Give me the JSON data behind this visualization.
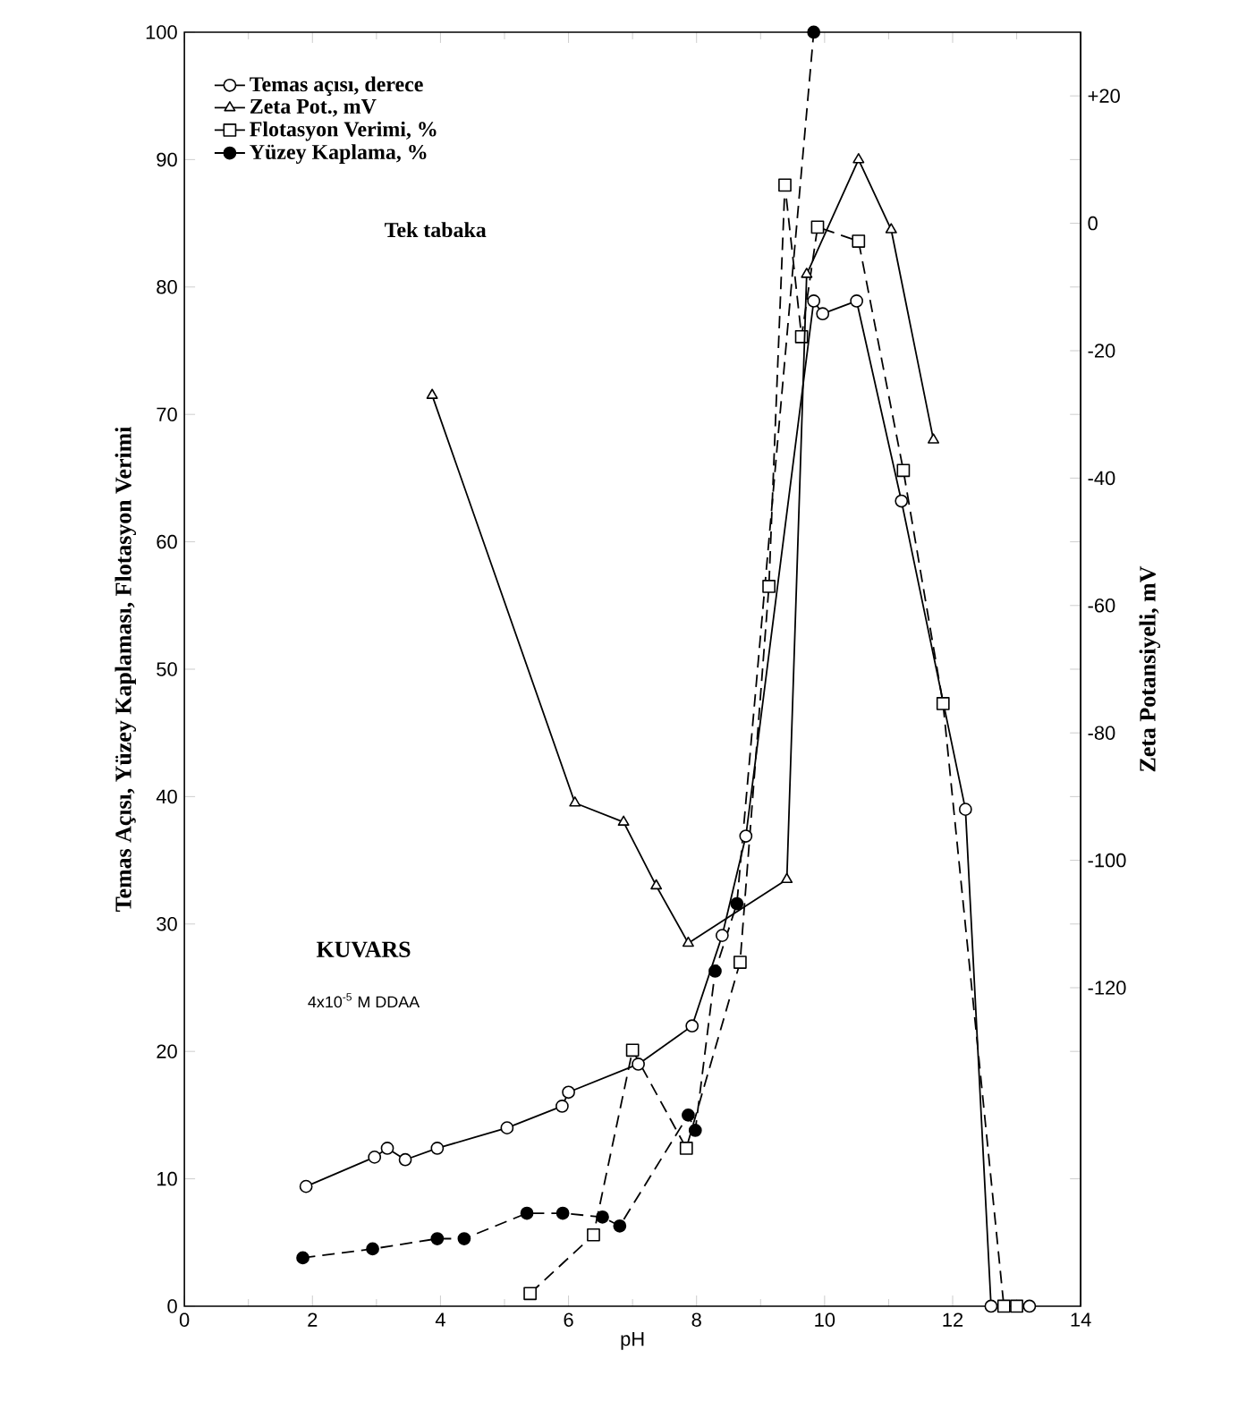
{
  "chart_data": {
    "type": "line",
    "xlabel": "pH",
    "ylabel": "Temas Açısı, Yüzey Kaplaması, Flotasyon Verimi",
    "y2label": "Zeta Potansiyeli, mV",
    "xlim": [
      0,
      14
    ],
    "xticks": [
      0,
      2,
      4,
      6,
      8,
      10,
      12,
      14
    ],
    "ylim": [
      0,
      100
    ],
    "yticks": [
      0,
      10,
      20,
      30,
      40,
      50,
      60,
      70,
      80,
      90,
      100
    ],
    "y2lim": [
      -170,
      30
    ],
    "y2ticks": [
      {
        "value": 20,
        "label": "+20"
      },
      {
        "value": 10,
        "label": null
      },
      0,
      {
        "value": -10,
        "label": null
      },
      -20,
      {
        "value": -30,
        "label": null
      },
      -40,
      {
        "value": -50,
        "label": null
      },
      -60,
      {
        "value": -70,
        "label": null
      },
      -80,
      {
        "value": -90,
        "label": null
      },
      -100,
      {
        "value": -110,
        "label": null
      },
      -120,
      {
        "value": -130,
        "label": null
      },
      {
        "value": -150,
        "label": null
      }
    ],
    "legend": "top left",
    "annotations": [
      "Tek tabaka",
      "KUVARS",
      "4x10$^{-5}$ M DDAA"
    ],
    "series": [
      {
        "name": "Temas açısı, derece",
        "color": "#000000",
        "marker": "circle",
        "line_style": "solid",
        "x": [
          1.9,
          2.97,
          3.17,
          3.45,
          3.95,
          5.04,
          5.9,
          6.0,
          7.09,
          7.93,
          8.4,
          8.77,
          9.83,
          9.97,
          10.5,
          11.2,
          12.2,
          12.6,
          13.2
        ],
        "values": [
          9.4,
          11.7,
          12.4,
          11.5,
          12.4,
          14.0,
          15.7,
          16.8,
          19.0,
          22.0,
          29.1,
          36.9,
          78.9,
          77.9,
          78.9,
          63.2,
          39.0,
          0,
          0
        ]
      },
      {
        "name": "Zeta Pot., mV",
        "color": "#000000",
        "marker": "triangle",
        "line_style": "solid",
        "axis": "y2",
        "x": [
          3.87,
          6.1,
          6.86,
          7.37,
          7.87,
          9.41,
          9.72,
          10.53,
          11.04,
          11.7
        ],
        "values": [
          -27,
          -91,
          -94,
          -104,
          -113,
          -103,
          -8,
          10,
          -1,
          -34
        ]
      },
      {
        "name": "Flotasyon Verimi, %",
        "color": "#000000",
        "marker": "square",
        "line_style": "dashed",
        "x": [
          5.4,
          6.39,
          7.0,
          7.84,
          8.68,
          9.13,
          9.38,
          9.64,
          9.89,
          10.53,
          11.23,
          11.85,
          12.8,
          13.0
        ],
        "values": [
          1.0,
          5.6,
          20.1,
          12.4,
          27.0,
          56.5,
          88.0,
          76.1,
          84.7,
          83.6,
          65.6,
          47.3,
          0,
          0
        ]
      },
      {
        "name": "Yüzey Kaplama, %",
        "color": "#000000",
        "marker": "circle",
        "line_style": "dashed",
        "x": [
          1.85,
          2.94,
          3.95,
          4.37,
          5.35,
          5.91,
          6.53,
          6.8,
          7.87,
          7.98,
          8.29,
          8.63,
          9.83
        ],
        "values": [
          3.8,
          4.5,
          5.3,
          5.3,
          7.3,
          7.3,
          7.0,
          6.3,
          15.0,
          13.8,
          26.3,
          31.6,
          100
        ]
      }
    ]
  }
}
